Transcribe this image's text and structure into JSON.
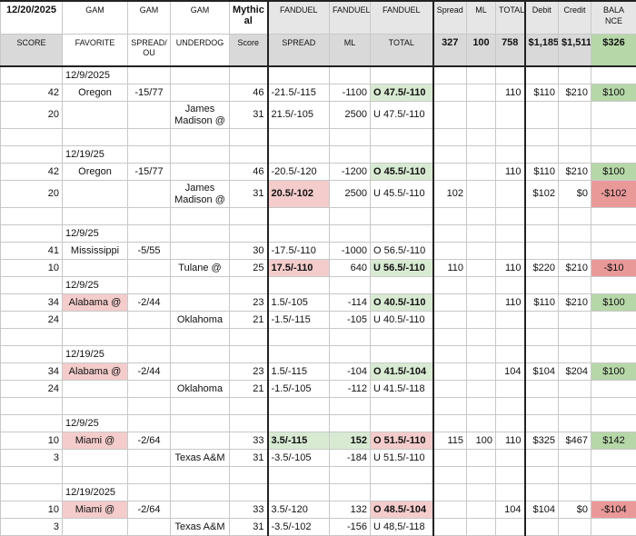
{
  "header": {
    "row1": [
      "12/20/2025",
      "GAM",
      "GAM",
      "GAM",
      "Mythic al",
      "FANDUEL",
      "FANDUEL",
      "FANDUEL",
      "Spread",
      "ML",
      "TOTAL",
      "Debit",
      "Credit",
      "BALA NCE"
    ],
    "row2": [
      "SCORE",
      "FAVORITE",
      "SPREAD/ OU",
      "UNDERDOG",
      "Score",
      "SPREAD",
      "ML",
      "TOTAL",
      "327",
      "100",
      "758",
      "$1,185",
      "$1,511",
      "$326"
    ],
    "row2_green": [
      13
    ]
  },
  "rows": [
    {
      "cells": [
        null,
        "12/9/2025",
        null,
        null,
        null,
        null,
        null,
        null,
        null,
        null,
        null,
        null,
        null,
        null
      ]
    },
    {
      "cells": [
        "42",
        "Oregon",
        "-15/77",
        null,
        "46",
        "-21.5/-115",
        "-1100",
        "O 47.5/-110",
        null,
        null,
        "110",
        "$110",
        "$210",
        "$100"
      ],
      "green": [
        7,
        13
      ],
      "bold": [
        7
      ]
    },
    {
      "cells": [
        "20",
        null,
        null,
        "James Madison @",
        "31",
        "21.5/-105",
        "2500",
        "U 47.5/-110",
        null,
        null,
        null,
        null,
        null,
        null
      ],
      "tall": true
    },
    {
      "cells": [
        null,
        null,
        null,
        null,
        null,
        null,
        null,
        null,
        null,
        null,
        null,
        null,
        null,
        null
      ]
    },
    {
      "cells": [
        null,
        "12/19/25",
        null,
        null,
        null,
        null,
        null,
        null,
        null,
        null,
        null,
        null,
        null,
        null
      ]
    },
    {
      "cells": [
        "42",
        "Oregon",
        "-15/77",
        null,
        "46",
        "-20.5/-120",
        "-1200",
        "O 45.5/-110",
        null,
        null,
        "110",
        "$110",
        "$210",
        "$100"
      ],
      "green": [
        7,
        13
      ],
      "bold": [
        7
      ]
    },
    {
      "cells": [
        "20",
        null,
        null,
        "James Madison @",
        "31",
        "20.5/-102",
        "2500",
        "U 45.5/-110",
        "102",
        null,
        null,
        "$102",
        "$0",
        "-$102"
      ],
      "pink": [
        5,
        13
      ],
      "bold": [
        5
      ],
      "tall": true
    },
    {
      "cells": [
        null,
        null,
        null,
        null,
        null,
        null,
        null,
        null,
        null,
        null,
        null,
        null,
        null,
        null
      ]
    },
    {
      "cells": [
        null,
        "12/9/25",
        null,
        null,
        null,
        null,
        null,
        null,
        null,
        null,
        null,
        null,
        null,
        null
      ]
    },
    {
      "cells": [
        "41",
        "Mississippi",
        "-5/55",
        null,
        "30",
        "-17.5/-110",
        "-1000",
        "O 56.5/-110",
        null,
        null,
        null,
        null,
        null,
        null
      ]
    },
    {
      "cells": [
        "10",
        null,
        null,
        "Tulane @",
        "25",
        "17.5/-110",
        "640",
        "U 56.5/-110",
        "110",
        null,
        "110",
        "$220",
        "$210",
        "-$10"
      ],
      "pink": [
        5,
        13
      ],
      "green": [
        7
      ],
      "bold": [
        5,
        7
      ]
    },
    {
      "cells": [
        null,
        "12/9/25",
        null,
        null,
        null,
        null,
        null,
        null,
        null,
        null,
        null,
        null,
        null,
        null
      ]
    },
    {
      "cells": [
        "34",
        "Alabama @",
        "-2/44",
        null,
        "23",
        "1.5/-105",
        "-114",
        "O 40.5/-110",
        null,
        null,
        "110",
        "$110",
        "$210",
        "$100"
      ],
      "pink": [
        1
      ],
      "green": [
        7,
        13
      ],
      "bold": [
        7
      ]
    },
    {
      "cells": [
        "24",
        null,
        null,
        "Oklahoma",
        "21",
        "-1.5/-115",
        "-105",
        "U 40.5/-110",
        null,
        null,
        null,
        null,
        null,
        null
      ]
    },
    {
      "cells": [
        null,
        null,
        null,
        null,
        null,
        null,
        null,
        null,
        null,
        null,
        null,
        null,
        null,
        null
      ]
    },
    {
      "cells": [
        null,
        "12/19/25",
        null,
        null,
        null,
        null,
        null,
        null,
        null,
        null,
        null,
        null,
        null,
        null
      ]
    },
    {
      "cells": [
        "34",
        "Alabama @",
        "-2/44",
        null,
        "23",
        "1.5/-115",
        "-104",
        "O 41.5/-104",
        null,
        null,
        "104",
        "$104",
        "$204",
        "$100"
      ],
      "pink": [
        1
      ],
      "green": [
        7,
        13
      ],
      "bold": [
        7
      ]
    },
    {
      "cells": [
        "24",
        null,
        null,
        "Oklahoma",
        "21",
        "-1.5/-105",
        "-112",
        "U 41.5/-118",
        null,
        null,
        null,
        null,
        null,
        null
      ]
    },
    {
      "cells": [
        null,
        null,
        null,
        null,
        null,
        null,
        null,
        null,
        null,
        null,
        null,
        null,
        null,
        null
      ]
    },
    {
      "cells": [
        null,
        "12/9/25",
        null,
        null,
        null,
        null,
        null,
        null,
        null,
        null,
        null,
        null,
        null,
        null
      ]
    },
    {
      "cells": [
        "10",
        "Miami @",
        "-2/64",
        null,
        "33",
        "3.5/-115",
        "152",
        "O 51.5/-110",
        "115",
        "100",
        "110",
        "$325",
        "$467",
        "$142"
      ],
      "pink": [
        1,
        7
      ],
      "green": [
        5,
        6,
        13
      ],
      "bold": [
        5,
        6,
        7
      ]
    },
    {
      "cells": [
        "3",
        null,
        null,
        "Texas A&M",
        "31",
        "-3.5/-105",
        "-184",
        "U 51.5/-110",
        null,
        null,
        null,
        null,
        null,
        null
      ]
    },
    {
      "cells": [
        null,
        null,
        null,
        null,
        null,
        null,
        null,
        null,
        null,
        null,
        null,
        null,
        null,
        null
      ]
    },
    {
      "cells": [
        null,
        "12/19/2025",
        null,
        null,
        null,
        null,
        null,
        null,
        null,
        null,
        null,
        null,
        null,
        null
      ]
    },
    {
      "cells": [
        "10",
        "Miami @",
        "-2/64",
        null,
        "33",
        "3.5/-120",
        "132",
        "O 48.5/-104",
        null,
        null,
        "104",
        "$104",
        "$0",
        "-$104"
      ],
      "pink": [
        1,
        7,
        13
      ],
      "bold": [
        7
      ]
    },
    {
      "cells": [
        "3",
        null,
        null,
        "Texas A&M",
        "31",
        "-3.5/-102",
        "-156",
        "U 48,5/-118",
        null,
        null,
        null,
        null,
        null,
        null
      ]
    }
  ]
}
